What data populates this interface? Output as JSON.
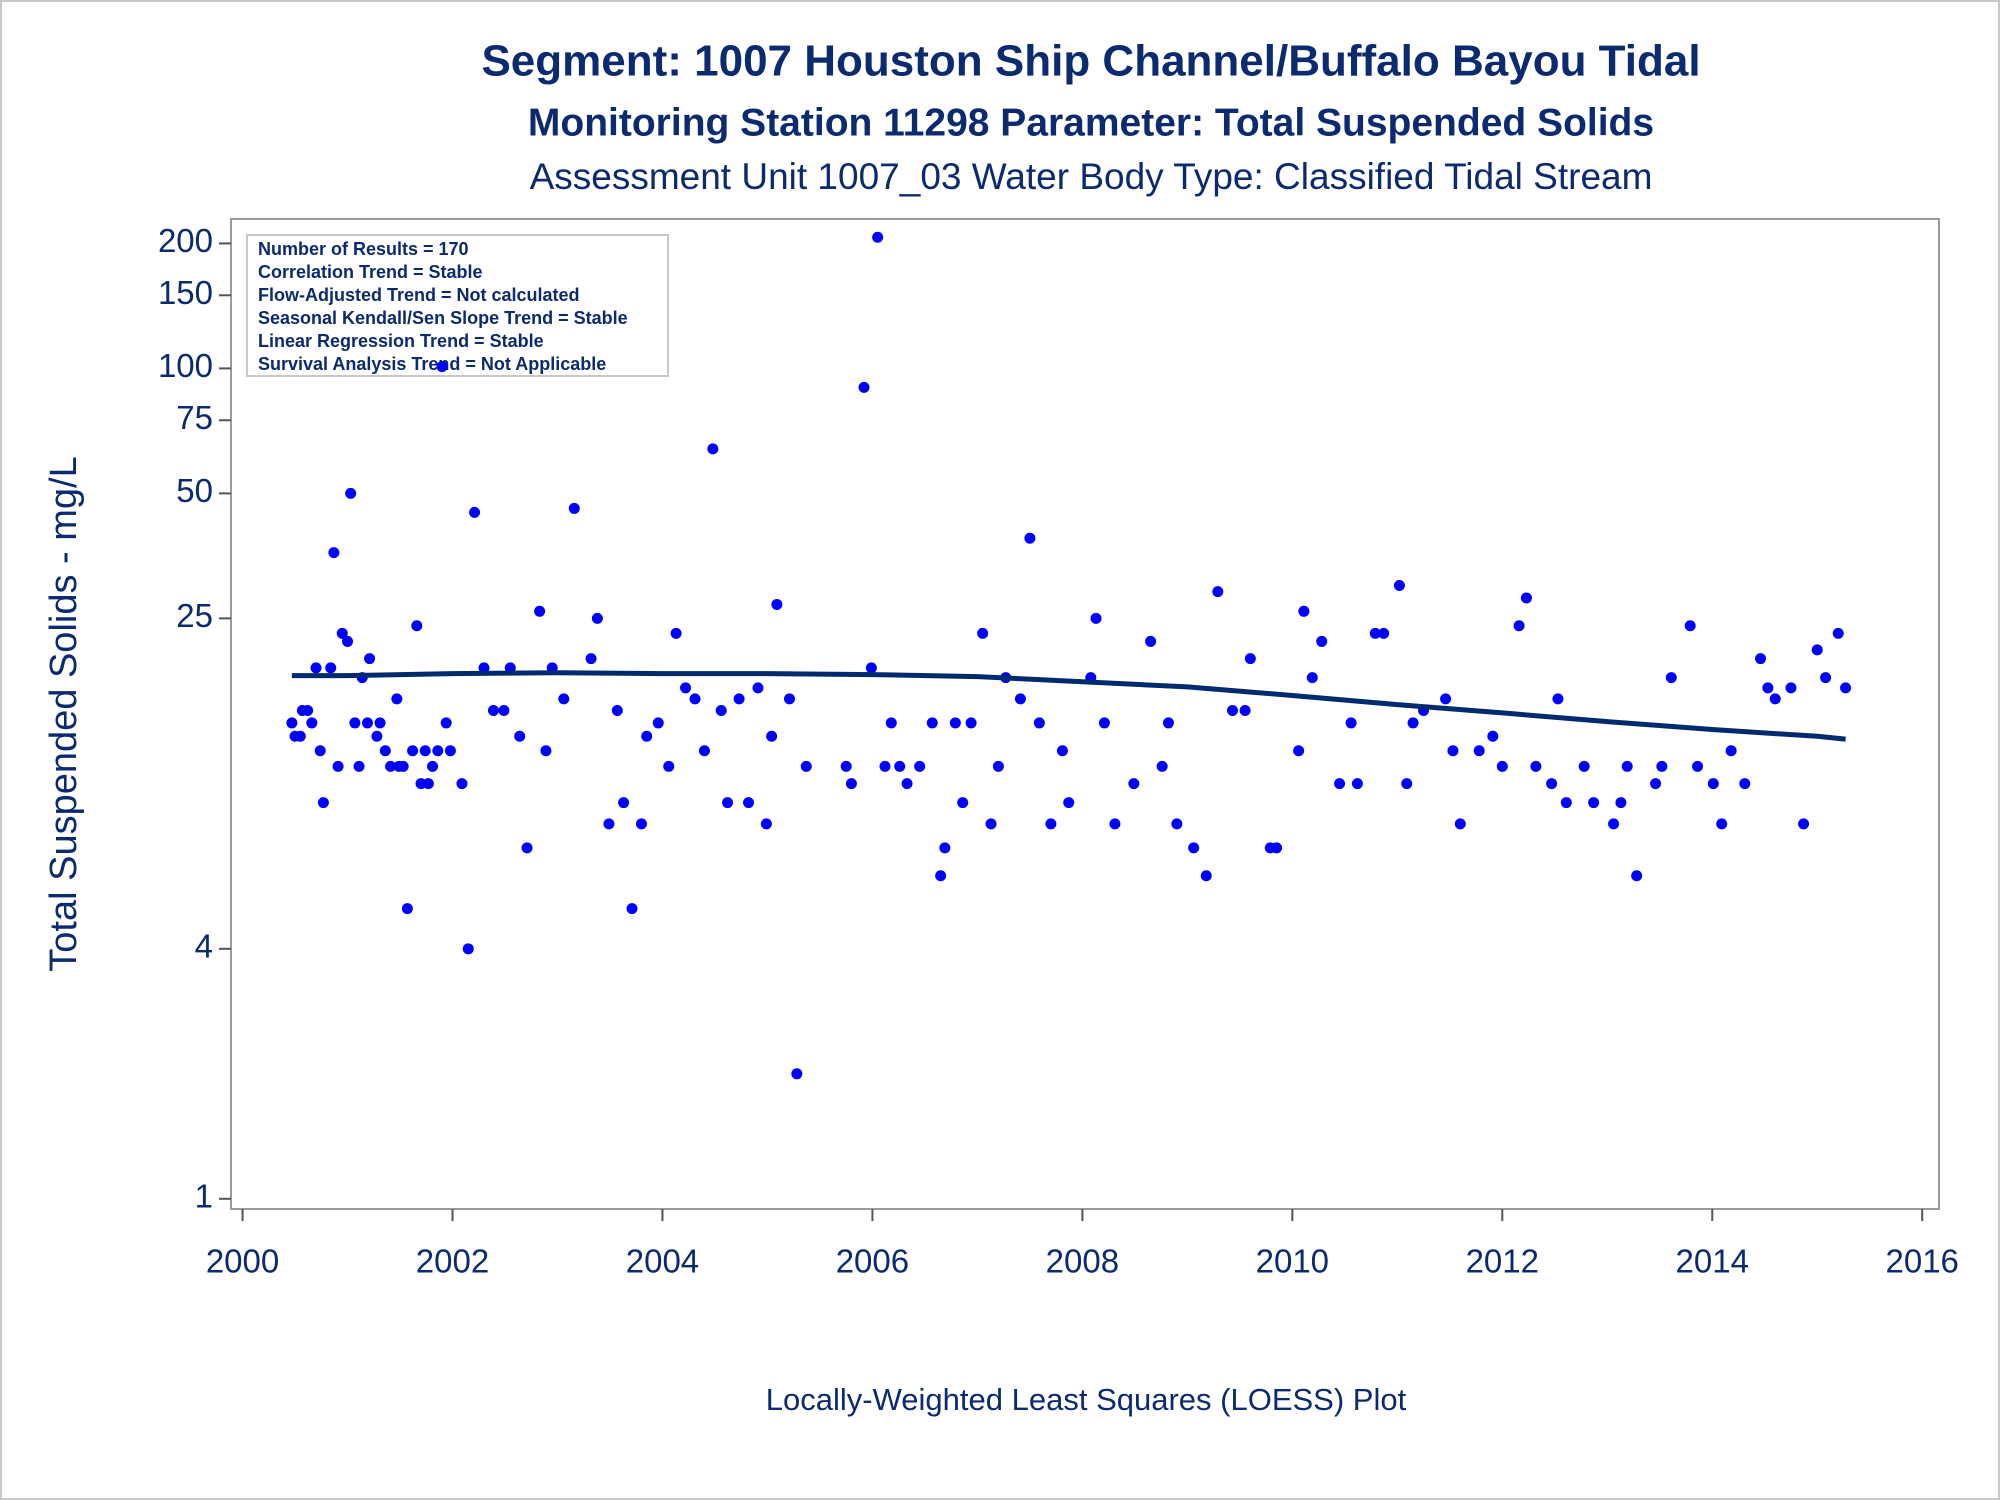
{
  "chart_data": {
    "type": "scatter",
    "title": "Segment: 1007  Houston Ship Channel/Buffalo Bayou Tidal",
    "subtitle": [
      "Monitoring Station 11298 Parameter: Total Suspended Solids",
      "Assessment Unit 1007_03   Water Body Type: Classified Tidal Stream"
    ],
    "y_label": "Total Suspended Solids - mg/L",
    "footnote": "Locally-Weighted Least Squares (LOESS) Plot",
    "annotations": [
      "Number of Results = 170",
      "Correlation Trend = Stable",
      "Flow-Adjusted Trend = Not calculated",
      "Seasonal Kendall/Sen Slope Trend = Stable",
      "Linear Regression Trend = Stable",
      "Survival Analysis Trend = Not Applicable"
    ],
    "log_scale": true,
    "xlim": [
      1999.89,
      2016.16
    ],
    "ylim": [
      0.945,
      229
    ],
    "xticks": [
      2000,
      2002,
      2004,
      2006,
      2008,
      2010,
      2012,
      2014,
      2016
    ],
    "yticks": [
      1,
      4,
      25,
      50,
      75,
      100,
      150,
      200
    ],
    "series": [
      {
        "type": "scatter",
        "color": "#0000ff",
        "x": [
          2000.47,
          2000.5,
          2000.55,
          2000.57,
          2000.62,
          2000.66,
          2000.7,
          2000.74,
          2000.77,
          2000.84,
          2000.87,
          2000.91,
          2000.95,
          2001.0,
          2001.03,
          2001.07,
          2001.11,
          2001.14,
          2001.21,
          2001.19,
          2001.28,
          2001.31,
          2001.36,
          2001.41,
          2001.47,
          2001.49,
          2001.53,
          2001.57,
          2001.62,
          2001.66,
          2001.7,
          2001.74,
          2001.77,
          2001.81,
          2001.86,
          2001.9,
          2001.94,
          2001.98,
          2002.09,
          2002.15,
          2002.21,
          2002.3,
          2002.39,
          2002.49,
          2002.55,
          2002.64,
          2002.71,
          2002.83,
          2002.89,
          2002.95,
          2003.06,
          2003.16,
          2003.32,
          2003.38,
          2003.49,
          2003.57,
          2003.63,
          2003.71,
          2003.8,
          2003.85,
          2003.96,
          2004.06,
          2004.13,
          2004.22,
          2004.31,
          2004.4,
          2004.48,
          2004.56,
          2004.62,
          2004.73,
          2004.82,
          2004.91,
          2004.99,
          2005.04,
          2005.09,
          2005.21,
          2005.28,
          2005.37,
          2005.75,
          2005.8,
          2005.92,
          2005.99,
          2006.05,
          2006.12,
          2006.18,
          2006.26,
          2006.33,
          2006.45,
          2006.57,
          2006.65,
          2006.69,
          2006.79,
          2006.86,
          2006.94,
          2007.05,
          2007.13,
          2007.2,
          2007.27,
          2007.41,
          2007.5,
          2007.59,
          2007.7,
          2007.81,
          2007.87,
          2008.08,
          2008.13,
          2008.21,
          2008.31,
          2008.49,
          2008.65,
          2008.76,
          2008.82,
          2008.9,
          2009.06,
          2009.18,
          2009.29,
          2009.43,
          2009.55,
          2009.6,
          2009.79,
          2009.85,
          2010.06,
          2010.11,
          2010.19,
          2010.28,
          2010.45,
          2010.56,
          2010.62,
          2010.79,
          2010.87,
          2011.02,
          2011.09,
          2011.15,
          2011.25,
          2011.46,
          2011.53,
          2011.6,
          2011.78,
          2011.91,
          2012.0,
          2012.16,
          2012.23,
          2012.32,
          2012.47,
          2012.53,
          2012.61,
          2012.78,
          2012.87,
          2013.06,
          2013.13,
          2013.19,
          2013.28,
          2013.46,
          2013.52,
          2013.61,
          2013.79,
          2013.86,
          2014.01,
          2014.09,
          2014.18,
          2014.31,
          2014.46,
          2014.53,
          2014.6,
          2014.75,
          2014.87,
          2015.0,
          2015.08,
          2015.2,
          2015.27
        ],
        "values": [
          14,
          13,
          13,
          15,
          15,
          14,
          19,
          12,
          9,
          19,
          36,
          11,
          23,
          22,
          50,
          14,
          11,
          18,
          20,
          14,
          13,
          14,
          12,
          11,
          16,
          11,
          11,
          5,
          12,
          24,
          10,
          12,
          10,
          11,
          12,
          101,
          14,
          12,
          10,
          4,
          45,
          19,
          15,
          15,
          19,
          13,
          7,
          26,
          12,
          19,
          16,
          46,
          20,
          25,
          8,
          15,
          9,
          5,
          8,
          13,
          14,
          11,
          23,
          17,
          16,
          12,
          64,
          15,
          9,
          16,
          9,
          17,
          8,
          13,
          27,
          16,
          2,
          11,
          11,
          10,
          90,
          19,
          207,
          11,
          14,
          11,
          10,
          11,
          14,
          6,
          7,
          14,
          9,
          14,
          23,
          8,
          11,
          18,
          16,
          39,
          14,
          8,
          12,
          9,
          18,
          25,
          14,
          8,
          10,
          22,
          11,
          14,
          8,
          7,
          6,
          29,
          15,
          15,
          20,
          7,
          7,
          12,
          26,
          18,
          22,
          10,
          14,
          10,
          23,
          23,
          30,
          10,
          14,
          15,
          16,
          12,
          8,
          12,
          13,
          11,
          24,
          28,
          11,
          10,
          16,
          9,
          11,
          9,
          8,
          9,
          11,
          6,
          10,
          11,
          18,
          24,
          11,
          10,
          8,
          12,
          10,
          20,
          17,
          16,
          17,
          8,
          21,
          18,
          23,
          17
        ]
      },
      {
        "type": "line",
        "color": "#002a6e",
        "x": [
          2000.47,
          2001,
          2002,
          2003,
          2004,
          2005,
          2006,
          2007,
          2008,
          2009,
          2010,
          2011,
          2012,
          2013,
          2014,
          2015,
          2015.27
        ],
        "values": [
          18.2,
          18.2,
          18.4,
          18.5,
          18.4,
          18.4,
          18.3,
          18.1,
          17.6,
          17.1,
          16.3,
          15.5,
          14.8,
          14.1,
          13.5,
          13.0,
          12.8
        ]
      }
    ]
  }
}
